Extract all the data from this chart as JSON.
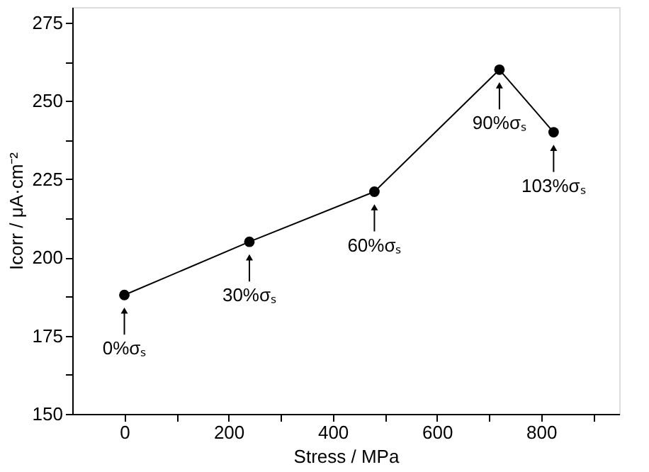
{
  "chart_data": {
    "type": "line",
    "xlabel": "Stress / MPa",
    "ylabel": "Icorr / μA·cm⁻²",
    "x": [
      0,
      240,
      480,
      720,
      824
    ],
    "series": [
      {
        "color": "#000000",
        "values": [
          188,
          205,
          221,
          260,
          240
        ]
      }
    ],
    "xlim": [
      -100,
      950
    ],
    "xticks": [
      0,
      {
        "value": 100,
        "label": null
      },
      200,
      {
        "value": 300,
        "label": null
      },
      400,
      {
        "value": 500,
        "label": null
      },
      600,
      {
        "value": 700,
        "label": null
      },
      800,
      {
        "value": 900,
        "label": null
      }
    ],
    "ylim": [
      150,
      280
    ],
    "yticks": [
      150,
      {
        "value": 162.5,
        "label": null
      },
      175,
      {
        "value": 187.5,
        "label": null
      },
      200,
      {
        "value": 212.5,
        "label": null
      },
      225,
      {
        "value": 237.5,
        "label": null
      },
      250,
      {
        "value": 262.5,
        "label": null
      },
      275
    ],
    "marker": "circle",
    "line_style": "solid",
    "grid": false,
    "annotations": [
      {
        "text": "0%σₛ",
        "x": 0,
        "y": 188
      },
      {
        "text": "30%σₛ",
        "x": 240,
        "y": 205
      },
      {
        "text": "60%σₛ",
        "x": 480,
        "y": 221
      },
      {
        "text": "90%σₛ",
        "x": 720,
        "y": 260
      },
      {
        "text": "103%σₛ",
        "x": 824,
        "y": 240
      }
    ]
  }
}
